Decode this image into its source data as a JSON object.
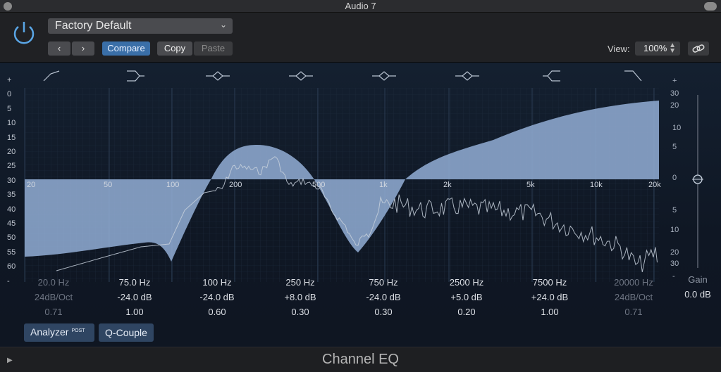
{
  "window": {
    "title": "Audio 7"
  },
  "header": {
    "preset": "Factory Default",
    "prev_label": "‹",
    "next_label": "›",
    "compare_label": "Compare",
    "copy_label": "Copy",
    "paste_label": "Paste",
    "view_label": "View:",
    "view_value": "100%"
  },
  "scale_left": [
    "+",
    "0",
    "5",
    "10",
    "15",
    "20",
    "25",
    "30",
    "35",
    "40",
    "45",
    "50",
    "55",
    "60",
    "-"
  ],
  "scale_right_top": [
    "+",
    "30",
    "20",
    "10",
    "5",
    "0",
    "5",
    "10",
    "20",
    "30",
    "-"
  ],
  "freq_labels": [
    "20",
    "50",
    "100",
    "200",
    "500",
    "1k",
    "2k",
    "5k",
    "10k",
    "20k"
  ],
  "bands": [
    {
      "freq": "20.0 Hz",
      "gain": "24dB/Oct",
      "q": "0.71",
      "active": false
    },
    {
      "freq": "75.0 Hz",
      "gain": "-24.0 dB",
      "q": "1.00",
      "active": true
    },
    {
      "freq": "100 Hz",
      "gain": "-24.0 dB",
      "q": "0.60",
      "active": true
    },
    {
      "freq": "250 Hz",
      "gain": "+8.0 dB",
      "q": "0.30",
      "active": true
    },
    {
      "freq": "750 Hz",
      "gain": "-24.0 dB",
      "q": "0.30",
      "active": true
    },
    {
      "freq": "2500 Hz",
      "gain": "+5.0 dB",
      "q": "0.20",
      "active": true
    },
    {
      "freq": "7500 Hz",
      "gain": "+24.0 dB",
      "q": "1.00",
      "active": true
    },
    {
      "freq": "20000 Hz",
      "gain": "24dB/Oct",
      "q": "0.71",
      "active": false
    }
  ],
  "gain": {
    "label": "Gain",
    "value": "0.0 dB"
  },
  "buttons": {
    "analyzer": "Analyzer",
    "analyzer_badge": "POST",
    "qcouple": "Q-Couple"
  },
  "footer": {
    "plugin_name": "Channel EQ"
  },
  "colors": {
    "curve_fill": "#8eaad0",
    "accent": "#3a6fa8",
    "power": "#5aa6e6"
  }
}
